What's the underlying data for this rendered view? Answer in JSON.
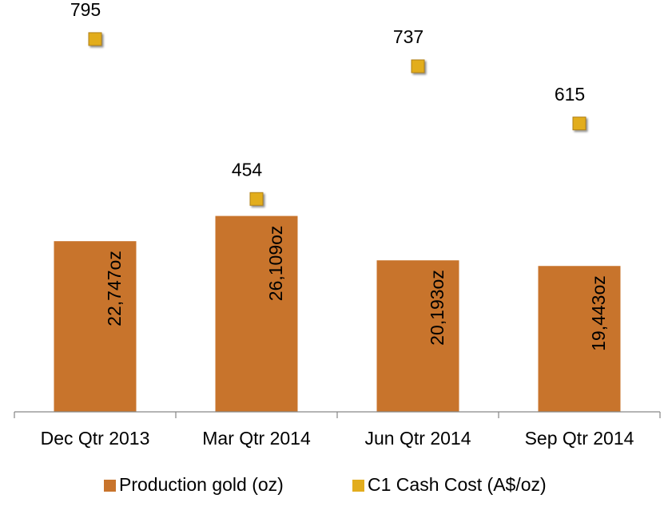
{
  "chart_data": {
    "type": "bar",
    "categories": [
      "Dec Qtr 2013",
      "Mar Qtr 2014",
      "Jun Qtr 2014",
      "Sep Qtr 2014"
    ],
    "series": [
      {
        "name": "Production gold (oz)",
        "color": "#c8742c",
        "type": "bar",
        "values": [
          22747,
          26109,
          20193,
          19443
        ],
        "value_labels": [
          "22,747oz",
          "26,109oz",
          "20,193oz",
          "19,443oz"
        ]
      },
      {
        "name": "C1 Cash Cost (A$/oz)",
        "color": "#e2ad1e",
        "type": "marker",
        "axis": "y2",
        "values": [
          795,
          454,
          737,
          615
        ]
      }
    ],
    "ylim": [
      0,
      50000
    ],
    "y2lim": [
      0,
      800
    ],
    "legend": "bottom"
  }
}
